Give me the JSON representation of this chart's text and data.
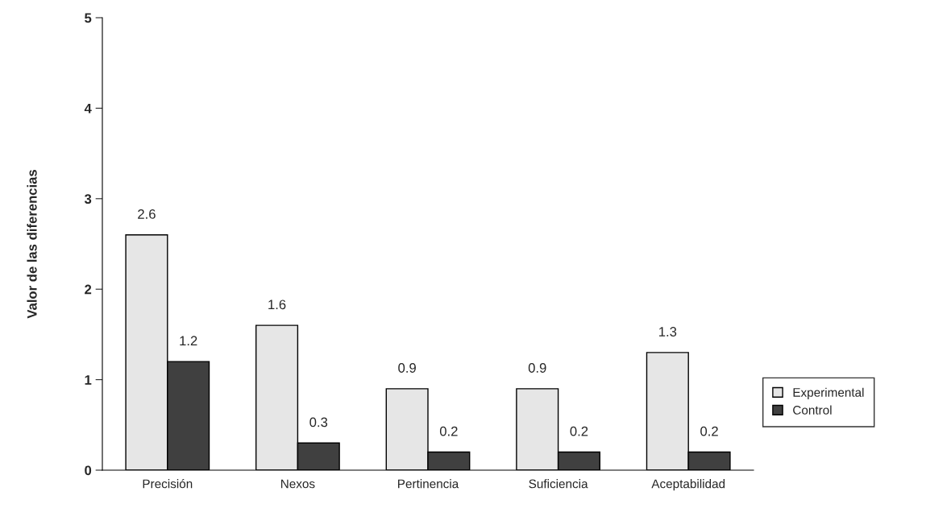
{
  "chart_data": {
    "type": "bar",
    "ylabel": "Valor de las diferencias",
    "categories": [
      "Precisión",
      "Nexos",
      "Pertinencia",
      "Suficiencia",
      "Aceptabilidad"
    ],
    "series": [
      {
        "name": "Experimental",
        "color": "#e6e6e6",
        "values": [
          2.6,
          1.6,
          0.9,
          0.9,
          1.3
        ]
      },
      {
        "name": "Control",
        "color": "#404040",
        "values": [
          1.2,
          0.3,
          0.2,
          0.2,
          0.2
        ]
      }
    ],
    "ylim": [
      0,
      5
    ],
    "yticks": [
      0,
      1,
      2,
      3,
      4,
      5
    ],
    "data_labels": true,
    "grid": false,
    "legend": "right"
  }
}
